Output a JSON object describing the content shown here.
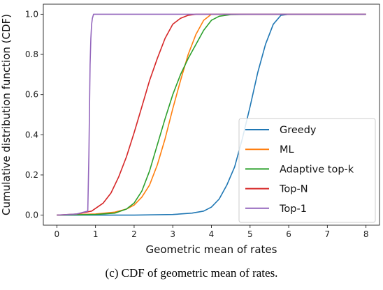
{
  "caption": "(c) CDF of geometric mean of rates.",
  "chart_data": {
    "type": "line",
    "title": "",
    "xlabel": "Geometric mean of rates",
    "ylabel": "Cumulative distribution function (CDF)",
    "xlim": [
      -0.35,
      8.35
    ],
    "ylim": [
      -0.05,
      1.05
    ],
    "xticks": [
      0,
      1,
      2,
      3,
      4,
      5,
      6,
      7,
      8
    ],
    "yticks": [
      0.0,
      0.2,
      0.4,
      0.6,
      0.8,
      1.0
    ],
    "xtick_labels": [
      "0",
      "1",
      "2",
      "3",
      "4",
      "5",
      "6",
      "7",
      "8"
    ],
    "ytick_labels": [
      "0.0",
      "0.2",
      "0.4",
      "0.6",
      "0.8",
      "1.0"
    ],
    "grid": false,
    "legend_position": "lower-right",
    "series": [
      {
        "name": "Greedy",
        "color": "#1f77b4",
        "x": [
          0,
          1,
          2,
          3,
          3.5,
          3.8,
          4.0,
          4.2,
          4.4,
          4.6,
          4.8,
          5.0,
          5.2,
          5.4,
          5.6,
          5.8,
          6.0,
          7.0,
          8.0
        ],
        "y": [
          0,
          0,
          0,
          0.003,
          0.01,
          0.02,
          0.04,
          0.08,
          0.15,
          0.24,
          0.38,
          0.54,
          0.71,
          0.85,
          0.95,
          0.995,
          1.0,
          1.0,
          1.0
        ]
      },
      {
        "name": "ML",
        "color": "#ff7f0e",
        "x": [
          0,
          0.5,
          1.0,
          1.5,
          1.8,
          2.0,
          2.2,
          2.4,
          2.6,
          2.8,
          3.0,
          3.2,
          3.4,
          3.6,
          3.8,
          4.0,
          4.2,
          5.0,
          8.0
        ],
        "y": [
          0,
          0.003,
          0.006,
          0.015,
          0.03,
          0.05,
          0.09,
          0.15,
          0.25,
          0.38,
          0.53,
          0.67,
          0.8,
          0.9,
          0.97,
          1.0,
          1.0,
          1.0,
          1.0
        ]
      },
      {
        "name": "Adaptive top-k",
        "color": "#2ca02c",
        "x": [
          0,
          1.0,
          1.5,
          1.8,
          2.0,
          2.2,
          2.4,
          2.6,
          2.8,
          3.0,
          3.2,
          3.4,
          3.6,
          3.8,
          4.0,
          4.2,
          4.5,
          5.0,
          5.5,
          8.0
        ],
        "y": [
          0,
          0.003,
          0.01,
          0.03,
          0.06,
          0.12,
          0.22,
          0.35,
          0.48,
          0.6,
          0.7,
          0.78,
          0.85,
          0.92,
          0.97,
          0.99,
          0.998,
          1.0,
          1.0,
          1.0
        ]
      },
      {
        "name": "Top-N",
        "color": "#d62728",
        "x": [
          0,
          0.5,
          0.9,
          1.2,
          1.4,
          1.6,
          1.8,
          2.0,
          2.2,
          2.4,
          2.6,
          2.8,
          3.0,
          3.2,
          3.4,
          3.6,
          3.8,
          4.0,
          8.0
        ],
        "y": [
          0,
          0.005,
          0.02,
          0.06,
          0.11,
          0.19,
          0.29,
          0.41,
          0.54,
          0.67,
          0.78,
          0.88,
          0.95,
          0.98,
          0.995,
          1.0,
          1.0,
          1.0,
          1.0
        ]
      },
      {
        "name": "Top-1",
        "color": "#9467bd",
        "x": [
          0,
          0.5,
          0.8,
          0.83,
          0.86,
          0.88,
          0.9,
          0.92,
          0.95,
          1.0,
          1.5,
          8.0
        ],
        "y": [
          0,
          0.005,
          0.02,
          0.3,
          0.75,
          0.88,
          0.95,
          0.98,
          1.0,
          1.0,
          1.0,
          1.0
        ]
      }
    ]
  }
}
